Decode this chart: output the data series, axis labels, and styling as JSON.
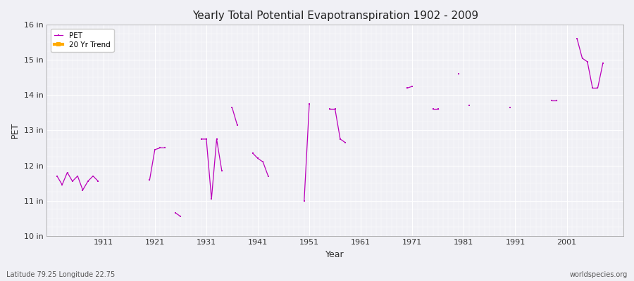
{
  "title": "Yearly Total Potential Evapotranspiration 1902 - 2009",
  "xlabel": "Year",
  "ylabel": "PET",
  "footer_left": "Latitude 79.25 Longitude 22.75",
  "footer_right": "worldspecies.org",
  "ylim": [
    10,
    16
  ],
  "ytick_labels": [
    "10 in",
    "11 in",
    "12 in",
    "13 in",
    "14 in",
    "15 in",
    "16 in"
  ],
  "ytick_values": [
    10,
    11,
    12,
    13,
    14,
    15,
    16
  ],
  "xtick_values": [
    1911,
    1921,
    1931,
    1941,
    1951,
    1961,
    1971,
    1981,
    1991,
    2001
  ],
  "xlim": [
    1900,
    2012
  ],
  "pet_color": "#bb00bb",
  "trend_color": "#ffaa00",
  "bg_color": "#f0f0f5",
  "plot_bg_color": "#f0f0f5",
  "legend_entries": [
    "PET",
    "20 Yr Trend"
  ],
  "pet_data": [
    [
      1902,
      11.7
    ],
    [
      1903,
      11.45
    ],
    [
      1904,
      11.8
    ],
    [
      1905,
      11.55
    ],
    [
      1906,
      11.7
    ],
    [
      1907,
      11.3
    ],
    [
      1908,
      11.55
    ],
    [
      1909,
      11.7
    ],
    [
      1910,
      11.55
    ],
    [
      1920,
      11.6
    ],
    [
      1921,
      12.45
    ],
    [
      1922,
      12.5
    ],
    [
      1923,
      12.5
    ],
    [
      1925,
      10.65
    ],
    [
      1926,
      10.55
    ],
    [
      1930,
      12.75
    ],
    [
      1931,
      12.75
    ],
    [
      1932,
      11.05
    ],
    [
      1933,
      12.75
    ],
    [
      1934,
      11.85
    ],
    [
      1936,
      13.65
    ],
    [
      1937,
      13.15
    ],
    [
      1940,
      12.35
    ],
    [
      1941,
      12.2
    ],
    [
      1942,
      12.1
    ],
    [
      1943,
      11.7
    ],
    [
      1950,
      11.0
    ],
    [
      1951,
      13.75
    ],
    [
      1955,
      13.6
    ],
    [
      1956,
      13.6
    ],
    [
      1957,
      12.75
    ],
    [
      1958,
      12.65
    ],
    [
      1970,
      14.2
    ],
    [
      1971,
      14.25
    ],
    [
      1975,
      13.6
    ],
    [
      1976,
      13.6
    ],
    [
      1980,
      14.6
    ],
    [
      1982,
      13.7
    ],
    [
      1990,
      13.65
    ],
    [
      1998,
      13.85
    ],
    [
      1999,
      13.85
    ],
    [
      2003,
      15.6
    ],
    [
      2004,
      15.05
    ],
    [
      2005,
      14.95
    ],
    [
      2006,
      14.2
    ],
    [
      2007,
      14.2
    ],
    [
      2008,
      14.9
    ]
  ]
}
